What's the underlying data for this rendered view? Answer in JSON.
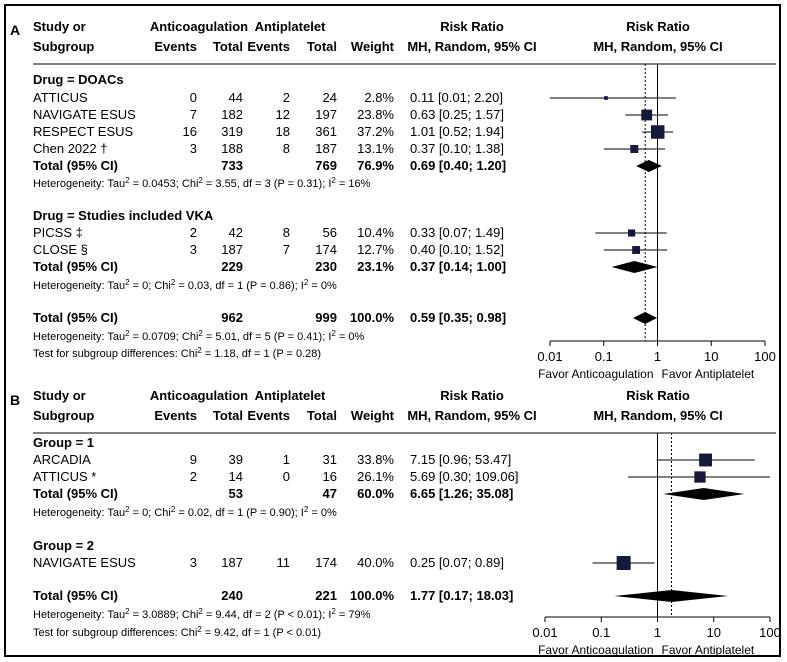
{
  "chart_data": [
    {
      "panel": "A",
      "type": "forest",
      "header": {
        "study_l1": "Study or",
        "study_l2": "Subgroup",
        "group1": "Anticoagulation",
        "group2": "Antiplatelet",
        "events": "Events",
        "total": "Total",
        "weight": "Weight",
        "rr1": "Risk Ratio",
        "rr2": "MH, Random, 95% CI",
        "plot_rr1": "Risk Ratio",
        "plot_rr2": "MH, Random, 95% CI"
      },
      "subgroups": [
        {
          "label": "Drug = DOACs",
          "studies": [
            {
              "name": "ATTICUS",
              "e1": "0",
              "n1": "44",
              "e2": "2",
              "n2": "24",
              "weight": "2.8%",
              "ci_text": "0.11 [0.01; 2.20]",
              "rr": 0.11,
              "lo": 0.01,
              "hi": 2.2,
              "w": 2.8
            },
            {
              "name": "NAVIGATE ESUS",
              "e1": "7",
              "n1": "182",
              "e2": "12",
              "n2": "197",
              "weight": "23.8%",
              "ci_text": "0.63 [0.25; 1.57]",
              "rr": 0.63,
              "lo": 0.25,
              "hi": 1.57,
              "w": 23.8
            },
            {
              "name": "RESPECT ESUS",
              "e1": "16",
              "n1": "319",
              "e2": "18",
              "n2": "361",
              "weight": "37.2%",
              "ci_text": "1.01 [0.52; 1.94]",
              "rr": 1.01,
              "lo": 0.52,
              "hi": 1.94,
              "w": 37.2
            },
            {
              "name": "Chen 2022 †",
              "e1": "3",
              "n1": "188",
              "e2": "8",
              "n2": "187",
              "weight": "13.1%",
              "ci_text": "0.37 [0.10; 1.38]",
              "rr": 0.37,
              "lo": 0.1,
              "hi": 1.38,
              "w": 13.1
            }
          ],
          "total": {
            "name": "Total (95% CI)",
            "n1": "733",
            "n2": "769",
            "weight": "76.9%",
            "ci_text": "0.69 [0.40; 1.20]",
            "rr": 0.69,
            "lo": 0.4,
            "hi": 1.2
          },
          "het": {
            "pre": "Heterogeneity: Tau",
            "a": " = 0.0453; Chi",
            "b": " = 3.55, df = 3 (P = 0.31); I",
            "c": " = 16%"
          }
        },
        {
          "label": "Drug = Studies included VKA",
          "studies": [
            {
              "name": "PICSS ‡",
              "e1": "2",
              "n1": "42",
              "e2": "8",
              "n2": "56",
              "weight": "10.4%",
              "ci_text": "0.33 [0.07; 1.49]",
              "rr": 0.33,
              "lo": 0.07,
              "hi": 1.49,
              "w": 10.4
            },
            {
              "name": "CLOSE §",
              "e1": "3",
              "n1": "187",
              "e2": "7",
              "n2": "174",
              "weight": "12.7%",
              "ci_text": "0.40 [0.10; 1.52]",
              "rr": 0.4,
              "lo": 0.1,
              "hi": 1.52,
              "w": 12.7
            }
          ],
          "total": {
            "name": "Total (95% CI)",
            "n1": "229",
            "n2": "230",
            "weight": "23.1%",
            "ci_text": "0.37 [0.14; 1.00]",
            "rr": 0.37,
            "lo": 0.14,
            "hi": 1.0
          },
          "het": {
            "pre": "Heterogeneity: Tau",
            "a": " = 0; Chi",
            "b": " = 0.03, df = 1 (P = 0.86); I",
            "c": " = 0%"
          }
        }
      ],
      "overall": {
        "name": "Total (95% CI)",
        "n1": "962",
        "n2": "999",
        "weight": "100.0%",
        "ci_text": "0.59 [0.35; 0.98]",
        "rr": 0.59,
        "lo": 0.35,
        "hi": 0.98
      },
      "overall_het": {
        "pre": "Heterogeneity: Tau",
        "a": " = 0.0709; Chi",
        "b": " = 5.01, df = 5 (P = 0.41); I",
        "c": " = 0%"
      },
      "subgroup_test": {
        "pre": "Test for subgroup differences: Chi",
        "b": " = 1.18, df = 1 (P = 0.28)"
      },
      "axis": {
        "ticks": [
          0.01,
          0.1,
          1,
          10,
          100
        ],
        "tick_labels": [
          "0.01",
          "0.1",
          "1",
          "10",
          "100"
        ],
        "xlim": [
          0.01,
          100
        ],
        "scale": "log",
        "reference": 1
      },
      "favor_left": "Favor Anticoagulation",
      "favor_right": "Favor Antiplatelet"
    },
    {
      "panel": "B",
      "type": "forest",
      "header": {
        "study_l1": "Study or",
        "study_l2": "Subgroup",
        "group1": "Anticoagulation",
        "group2": "Antiplatelet",
        "events": "Events",
        "total": "Total",
        "weight": "Weight",
        "rr1": "Risk Ratio",
        "rr2": "MH, Random, 95% CI",
        "plot_rr1": "Risk Ratio",
        "plot_rr2": "MH, Random, 95% CI"
      },
      "subgroups": [
        {
          "label": "Group = 1",
          "studies": [
            {
              "name": "ARCADIA",
              "e1": "9",
              "n1": "39",
              "e2": "1",
              "n2": "31",
              "weight": "33.8%",
              "ci_text": "7.15 [0.96;  53.47]",
              "rr": 7.15,
              "lo": 0.96,
              "hi": 53.47,
              "w": 33.8
            },
            {
              "name": "ATTICUS *",
              "e1": "2",
              "n1": "14",
              "e2": "0",
              "n2": "16",
              "weight": "26.1%",
              "ci_text": "5.69 [0.30; 109.06]",
              "rr": 5.69,
              "lo": 0.3,
              "hi": 109.06,
              "w": 26.1
            }
          ],
          "total": {
            "name": "Total (95% CI)",
            "n1": "53",
            "n2": "47",
            "weight": "60.0%",
            "ci_text": "6.65 [1.26;  35.08]",
            "rr": 6.65,
            "lo": 1.26,
            "hi": 35.08
          },
          "het": {
            "pre": "Heterogeneity: Tau",
            "a": " = 0; Chi",
            "b": " = 0.02, df = 1 (P = 0.90); I",
            "c": " = 0%"
          }
        },
        {
          "label": "Group = 2",
          "studies": [
            {
              "name": "NAVIGATE ESUS",
              "e1": "3",
              "n1": "187",
              "e2": "11",
              "n2": "174",
              "weight": "40.0%",
              "ci_text": "0.25 [0.07;   0.89]",
              "rr": 0.25,
              "lo": 0.07,
              "hi": 0.89,
              "w": 40.0
            }
          ],
          "total": null,
          "het": null
        }
      ],
      "overall": {
        "name": "Total (95% CI)",
        "n1": "240",
        "n2": "221",
        "weight": "100.0%",
        "ci_text": "1.77 [0.17;  18.03]",
        "rr": 1.77,
        "lo": 0.17,
        "hi": 18.03
      },
      "overall_het": {
        "pre": "Heterogeneity: Tau",
        "a": " = 3.0889; Chi",
        "b": " = 9.44, df = 2 (P < 0.01); I",
        "c": " = 79%"
      },
      "subgroup_test": {
        "pre": "Test for subgroup differences: Chi",
        "b": " = 9.42, df = 1 (P < 0.01)"
      },
      "axis": {
        "ticks": [
          0.01,
          0.1,
          1,
          10,
          100
        ],
        "tick_labels": [
          "0.01",
          "0.1",
          "1",
          "10",
          "100"
        ],
        "xlim": [
          0.01,
          100
        ],
        "scale": "log",
        "reference": 1
      },
      "favor_left": "Favor Anticoagulation",
      "favor_right": "Favor Antiplatelet"
    }
  ]
}
